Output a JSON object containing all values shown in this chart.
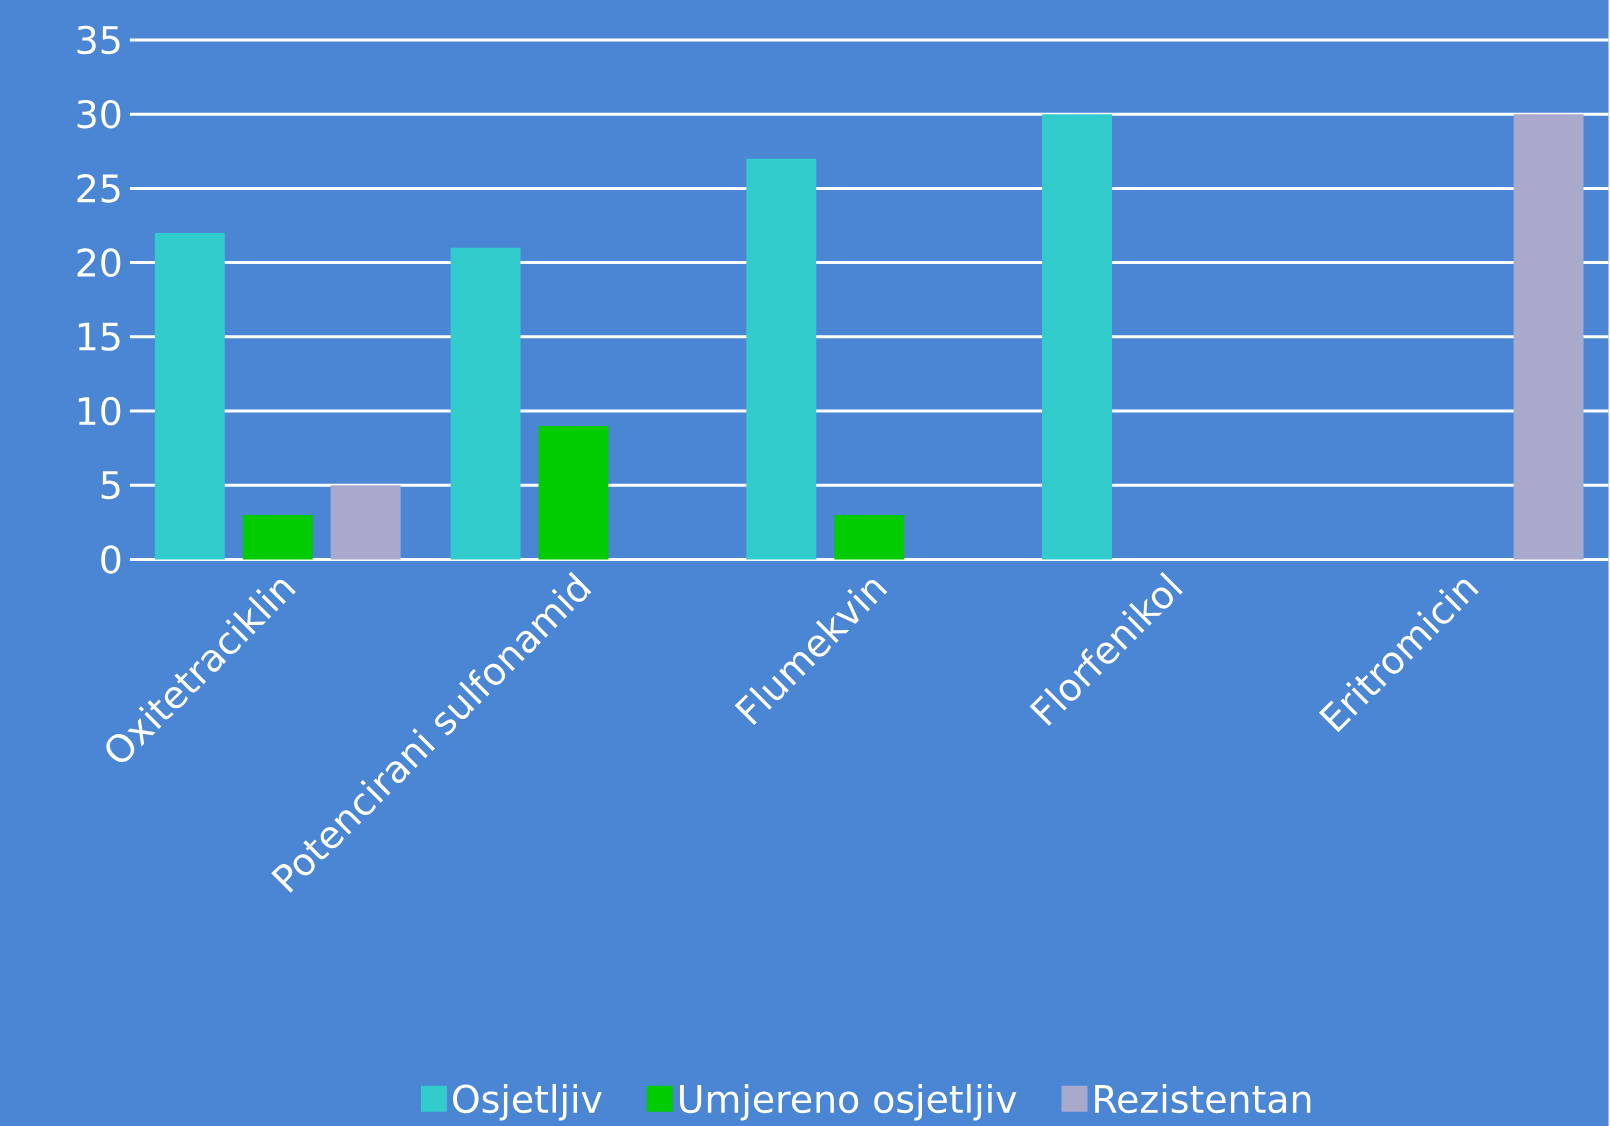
{
  "chart_data": {
    "type": "bar",
    "categories": [
      "Oxitetraciklin",
      "Potencirani sulfonamid",
      "Flumekvin",
      "Florfenikol",
      "Eritromicin"
    ],
    "series": [
      {
        "name": "Osjetljiv",
        "color": "#33cccc",
        "values": [
          22,
          21,
          27,
          30,
          0
        ]
      },
      {
        "name": "Umjereno osjetljiv",
        "color": "#00cc00",
        "values": [
          3,
          9,
          3,
          0,
          0
        ]
      },
      {
        "name": "Rezistentan",
        "color": "#a9a9cc",
        "values": [
          5,
          0,
          0,
          0,
          30
        ]
      }
    ],
    "ylim": [
      0,
      35
    ],
    "yticks": [
      0,
      5,
      10,
      15,
      20,
      25,
      30,
      35
    ],
    "grid": "y",
    "legend": "bottom"
  }
}
